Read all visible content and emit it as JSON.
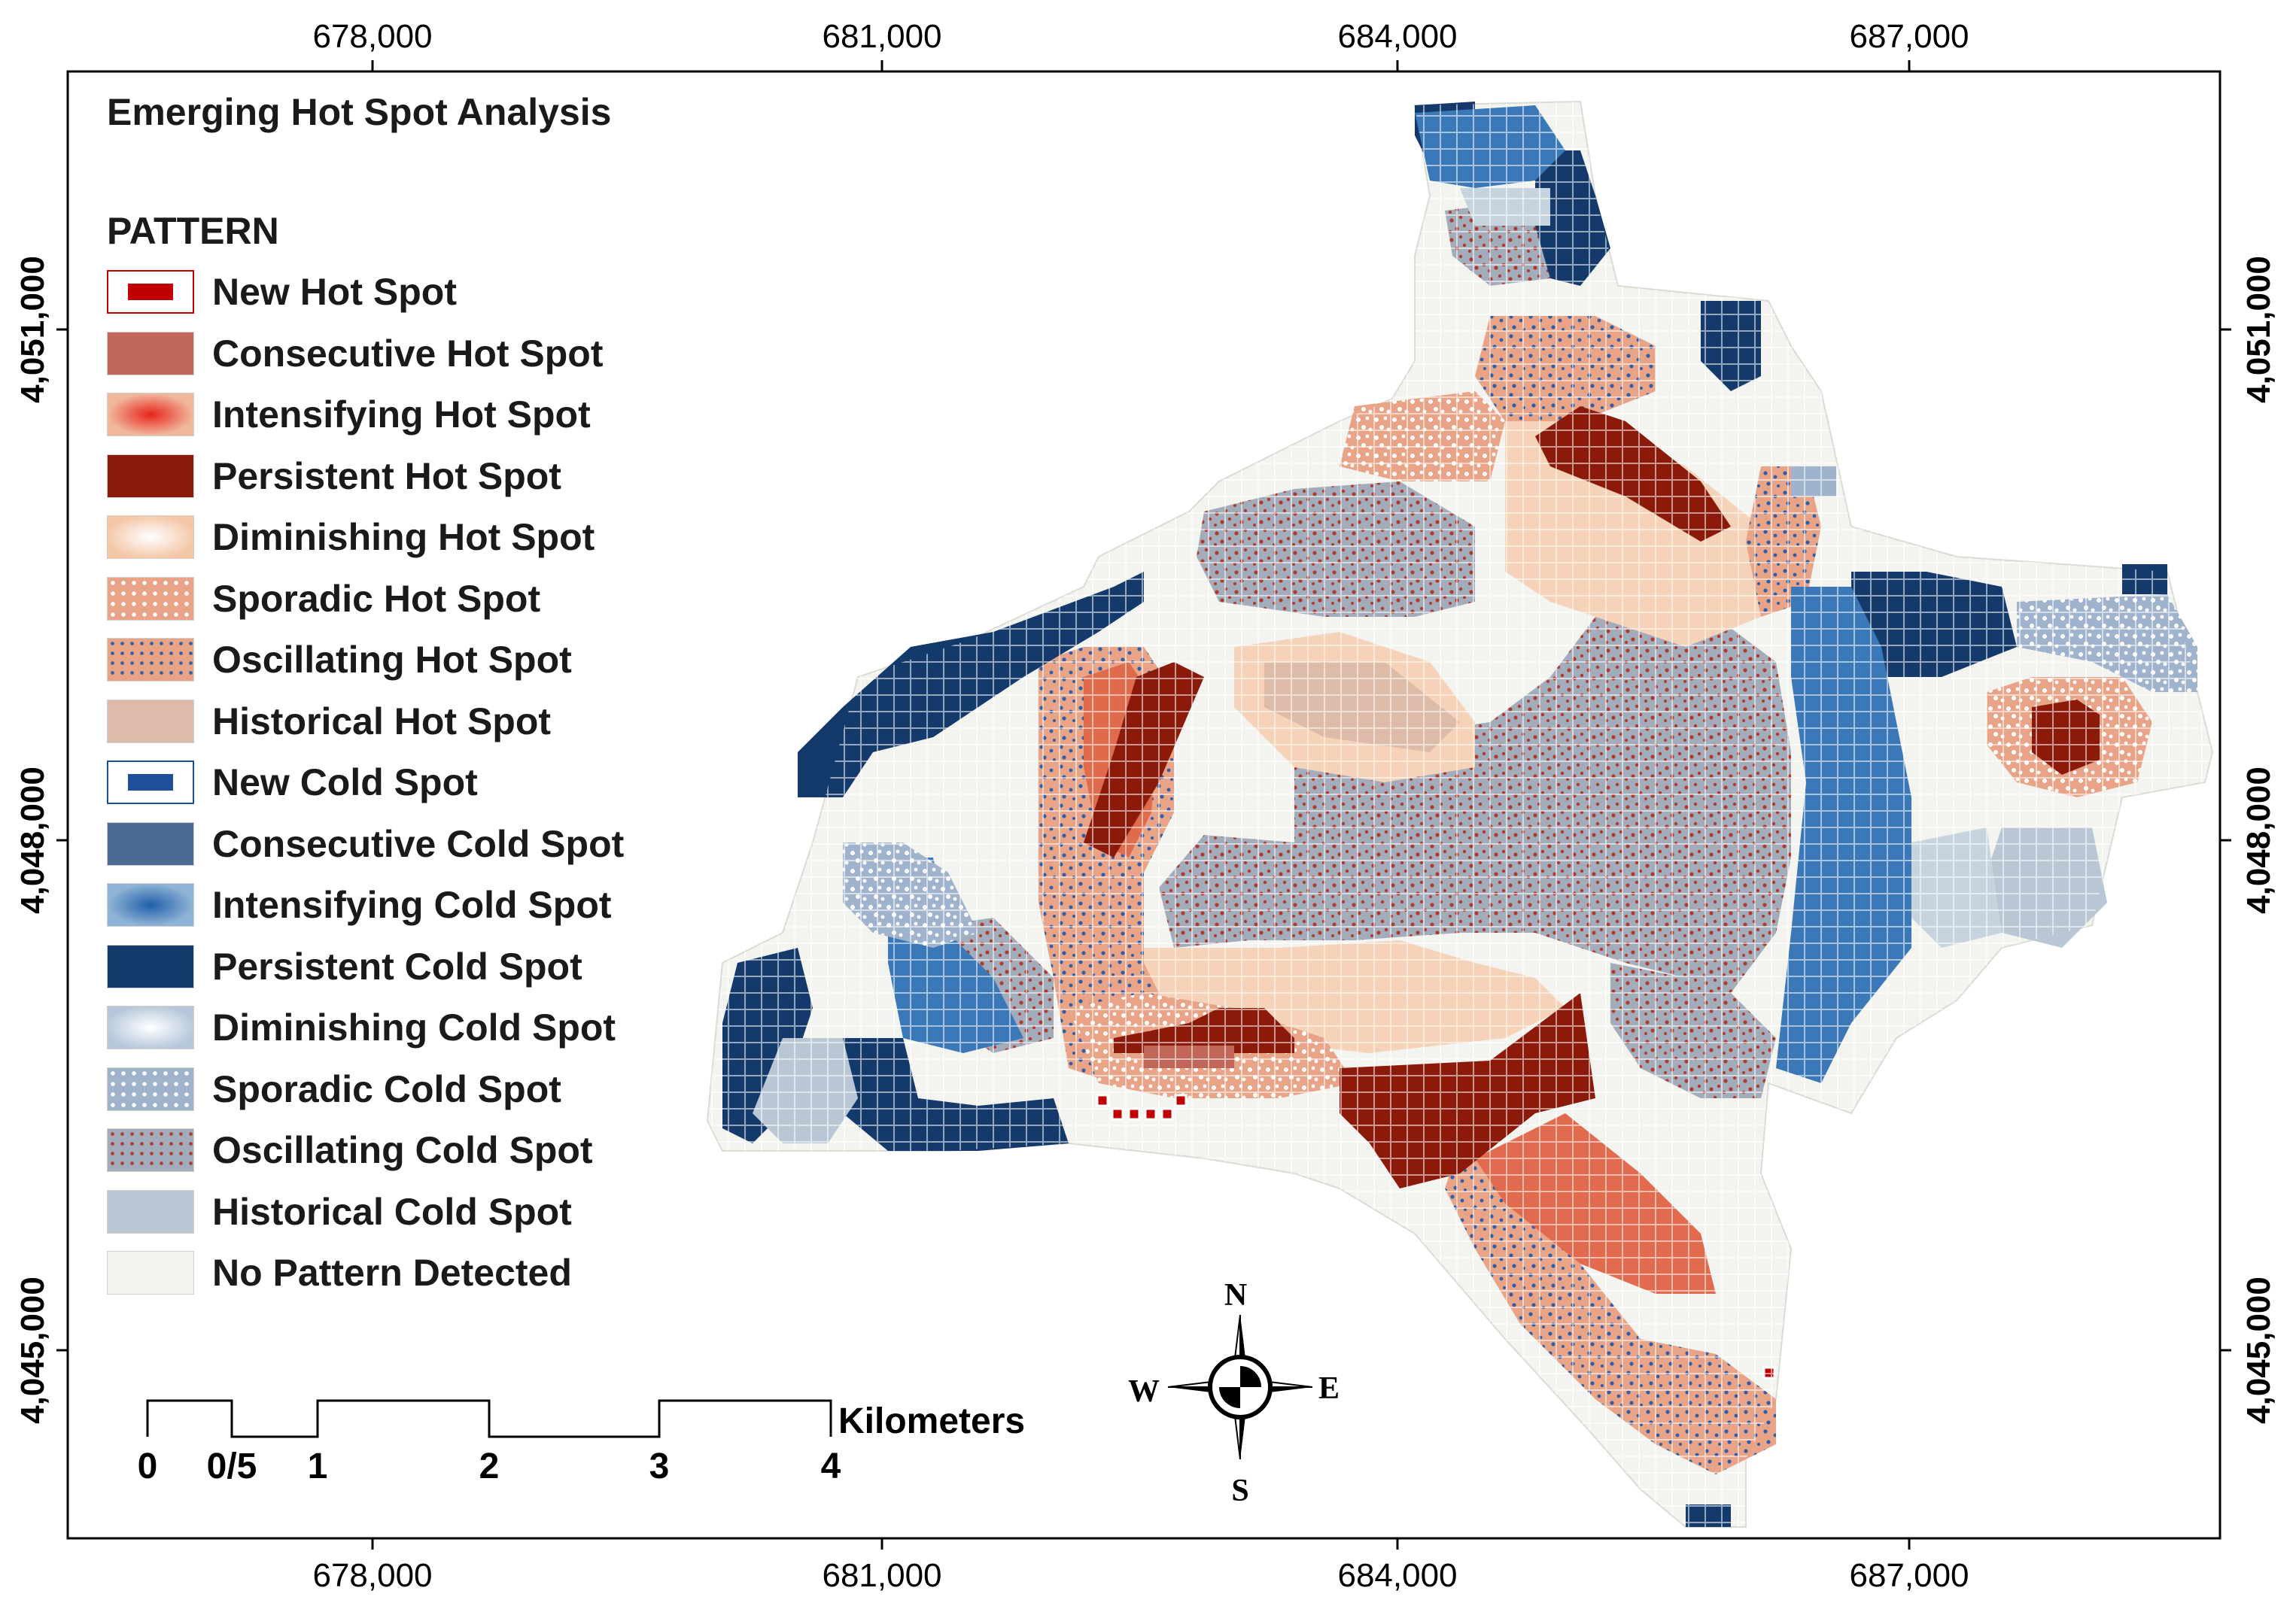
{
  "map": {
    "title": "Emerging Hot Spot Analysis",
    "legend_heading": "PATTERN",
    "units": "Kilometers"
  },
  "axes": {
    "x_ticks": [
      "678,000",
      "681,000",
      "684,000",
      "687,000"
    ],
    "y_ticks": [
      "4,051,000",
      "4,048,000",
      "4,045,000"
    ]
  },
  "legend": [
    {
      "label": "New Hot Spot",
      "color": "#c00000",
      "style": "new-hot"
    },
    {
      "label": "Consecutive Hot Spot",
      "color": "#c0675a",
      "style": "solid"
    },
    {
      "label": "Intensifying Hot Spot",
      "color": "#e8391f",
      "style": "intensify-hot"
    },
    {
      "label": "Persistent Hot Spot",
      "color": "#8b1a0a",
      "style": "solid"
    },
    {
      "label": "Diminishing Hot Spot",
      "color": "#f6cdb0",
      "style": "diminish-hot"
    },
    {
      "label": "Sporadic Hot Spot",
      "color": "#e9a386",
      "style": "sporadic-hot"
    },
    {
      "label": "Oscillating Hot Spot",
      "color": "#e9a386",
      "style": "oscillating-hot"
    },
    {
      "label": "Historical Hot Spot",
      "color": "#dcbca8",
      "style": "solid"
    },
    {
      "label": "New Cold Spot",
      "color": "#1f4e9a",
      "style": "new-cold"
    },
    {
      "label": "Consecutive Cold Spot",
      "color": "#4a6a94",
      "style": "solid"
    },
    {
      "label": "Intensifying Cold Spot",
      "color": "#3b78b8",
      "style": "intensify-cold"
    },
    {
      "label": "Persistent Cold Spot",
      "color": "#133a6b",
      "style": "solid"
    },
    {
      "label": "Diminishing Cold Spot",
      "color": "#c6d4e0",
      "style": "diminish-cold"
    },
    {
      "label": "Sporadic Cold Spot",
      "color": "#9fb3cd",
      "style": "sporadic-cold"
    },
    {
      "label": "Oscillating Cold Spot",
      "color": "#a3acbb",
      "style": "oscillating-cold"
    },
    {
      "label": "Historical Cold Spot",
      "color": "#b8c7d3",
      "style": "solid"
    },
    {
      "label": "No Pattern Detected",
      "color": "#f3f4ef",
      "style": "solid"
    }
  ],
  "scale_bar": {
    "labels": [
      "0",
      "0/5",
      "1",
      "2",
      "3",
      "4"
    ]
  },
  "compass": {
    "n": "N",
    "s": "S",
    "e": "E",
    "w": "W"
  }
}
